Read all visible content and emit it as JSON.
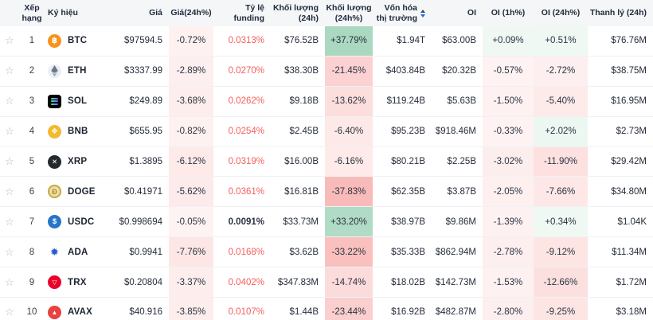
{
  "colors": {
    "header_bg": "#f5f6f8",
    "positive_green": "#2a9d64",
    "negative_red": "#ef5550",
    "funding_red": "#f2605b",
    "text_dark": "#262d3a"
  },
  "icons": {
    "favorite": "star-icon",
    "sort": "sort-arrows-icon"
  },
  "columns": [
    {
      "id": "fav",
      "label": "",
      "align": "center"
    },
    {
      "id": "rank",
      "label": "Xếp hạng",
      "align": "center"
    },
    {
      "id": "symbol",
      "label": "Ký hiệu",
      "align": "left"
    },
    {
      "id": "price",
      "label": "Giá",
      "align": "right"
    },
    {
      "id": "change24h",
      "label": "Giá(24h%)",
      "align": "center",
      "type": "pct"
    },
    {
      "id": "funding",
      "label": "Tỷ lệ funding",
      "align": "right"
    },
    {
      "id": "vol24h",
      "label": "Khối lượng (24h)",
      "align": "right"
    },
    {
      "id": "vol24hPct",
      "label": "Khối lượng (24h%)",
      "align": "center",
      "type": "pct"
    },
    {
      "id": "mcap",
      "label": "Vốn hóa thị trường",
      "align": "right",
      "sort": true
    },
    {
      "id": "oi",
      "label": "OI",
      "align": "right"
    },
    {
      "id": "oi1hPct",
      "label": "OI (1h%)",
      "align": "center",
      "type": "pct"
    },
    {
      "id": "oi24hPct",
      "label": "OI (24h%)",
      "align": "center",
      "type": "pct"
    },
    {
      "id": "liq24h",
      "label": "Thanh lý (24h)",
      "align": "right"
    }
  ],
  "rows": [
    {
      "rank": "1",
      "coin": "BTC",
      "icon": "btc",
      "price": "$97594.5",
      "change24h": "-0.72%",
      "funding": "0.0313%",
      "funding_style": "red",
      "vol24h": "$76.52B",
      "vol24hPct": "+37.79%",
      "mcap": "$1.94T",
      "oi": "$63.00B",
      "oi1hPct": "+0.09%",
      "oi24hPct": "+0.51%",
      "liq24h": "$76.76M"
    },
    {
      "rank": "2",
      "coin": "ETH",
      "icon": "eth",
      "price": "$3337.99",
      "change24h": "-2.89%",
      "funding": "0.0270%",
      "funding_style": "red",
      "vol24h": "$38.30B",
      "vol24hPct": "-21.45%",
      "mcap": "$403.84B",
      "oi": "$20.32B",
      "oi1hPct": "-0.57%",
      "oi24hPct": "-2.72%",
      "liq24h": "$38.75M"
    },
    {
      "rank": "3",
      "coin": "SOL",
      "icon": "sol",
      "price": "$249.89",
      "change24h": "-3.68%",
      "funding": "0.0262%",
      "funding_style": "red",
      "vol24h": "$9.18B",
      "vol24hPct": "-13.62%",
      "mcap": "$119.24B",
      "oi": "$5.63B",
      "oi1hPct": "-1.50%",
      "oi24hPct": "-5.40%",
      "liq24h": "$16.95M"
    },
    {
      "rank": "4",
      "coin": "BNB",
      "icon": "bnb",
      "price": "$655.95",
      "change24h": "-0.82%",
      "funding": "0.0254%",
      "funding_style": "red",
      "vol24h": "$2.45B",
      "vol24hPct": "-6.40%",
      "mcap": "$95.23B",
      "oi": "$918.46M",
      "oi1hPct": "-0.33%",
      "oi24hPct": "+2.02%",
      "liq24h": "$2.73M"
    },
    {
      "rank": "5",
      "coin": "XRP",
      "icon": "xrp",
      "price": "$1.3895",
      "change24h": "-6.12%",
      "funding": "0.0319%",
      "funding_style": "red",
      "vol24h": "$16.00B",
      "vol24hPct": "-6.16%",
      "mcap": "$80.21B",
      "oi": "$2.25B",
      "oi1hPct": "-3.02%",
      "oi24hPct": "-11.90%",
      "liq24h": "$29.42M"
    },
    {
      "rank": "6",
      "coin": "DOGE",
      "icon": "doge",
      "price": "$0.41971",
      "change24h": "-5.62%",
      "funding": "0.0361%",
      "funding_style": "red",
      "vol24h": "$16.81B",
      "vol24hPct": "-37.83%",
      "mcap": "$62.35B",
      "oi": "$3.87B",
      "oi1hPct": "-2.05%",
      "oi24hPct": "-7.66%",
      "liq24h": "$34.80M"
    },
    {
      "rank": "7",
      "coin": "USDC",
      "icon": "usdc",
      "price": "$0.998694",
      "change24h": "-0.05%",
      "funding": "0.0091%",
      "funding_style": "dark",
      "vol24h": "$33.73M",
      "vol24hPct": "+33.20%",
      "mcap": "$38.97B",
      "oi": "$9.86M",
      "oi1hPct": "-1.39%",
      "oi24hPct": "+0.34%",
      "liq24h": "$1.04K"
    },
    {
      "rank": "8",
      "coin": "ADA",
      "icon": "ada",
      "price": "$0.9941",
      "change24h": "-7.76%",
      "funding": "0.0168%",
      "funding_style": "red",
      "vol24h": "$3.62B",
      "vol24hPct": "-33.22%",
      "mcap": "$35.33B",
      "oi": "$862.94M",
      "oi1hPct": "-2.78%",
      "oi24hPct": "-9.12%",
      "liq24h": "$11.34M"
    },
    {
      "rank": "9",
      "coin": "TRX",
      "icon": "trx",
      "price": "$0.20804",
      "change24h": "-3.37%",
      "funding": "0.0402%",
      "funding_style": "red",
      "vol24h": "$347.83M",
      "vol24hPct": "-14.74%",
      "mcap": "$18.02B",
      "oi": "$142.73M",
      "oi1hPct": "-1.53%",
      "oi24hPct": "-12.66%",
      "liq24h": "$1.72M"
    },
    {
      "rank": "10",
      "coin": "AVAX",
      "icon": "avax",
      "price": "$40.916",
      "change24h": "-3.85%",
      "funding": "0.0107%",
      "funding_style": "red",
      "vol24h": "$1.44B",
      "vol24hPct": "-23.44%",
      "mcap": "$16.92B",
      "oi": "$482.87M",
      "oi1hPct": "-2.80%",
      "oi24hPct": "-9.25%",
      "liq24h": "$3.18M"
    }
  ],
  "symbols": {
    "btc_glyph": "฿",
    "bnb_glyph": "❖",
    "xrp_glyph": "✕",
    "doge_glyph": "Đ",
    "usdc_glyph": "$",
    "ada_glyph": "✹",
    "trx_glyph": "▽",
    "avax_glyph": "▲",
    "star_glyph": "☆"
  }
}
